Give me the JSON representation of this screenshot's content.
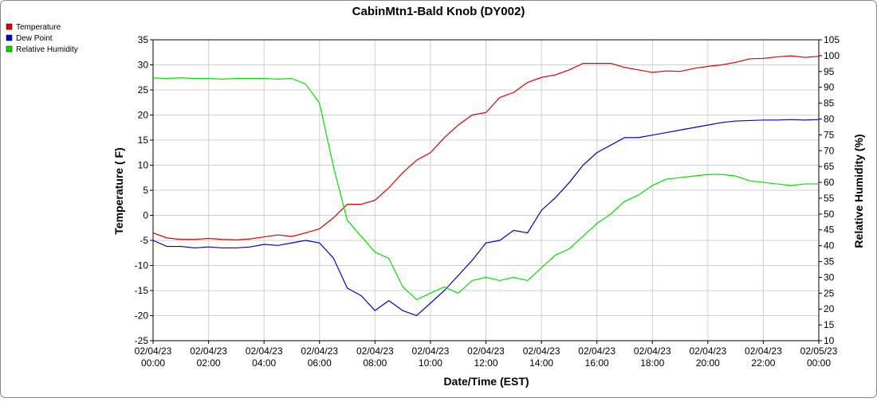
{
  "chart_data": {
    "type": "line",
    "title": "CabinMtn1-Bald Knob (DY002)",
    "x_label": "Date/Time (EST)",
    "y_label": "Temperature ( F)",
    "y2_label": "Relative Humidity (%)",
    "x": [
      "02/04/23 00:00",
      "02/04/23 00:30",
      "02/04/23 01:00",
      "02/04/23 01:30",
      "02/04/23 02:00",
      "02/04/23 02:30",
      "02/04/23 03:00",
      "02/04/23 03:30",
      "02/04/23 04:00",
      "02/04/23 04:30",
      "02/04/23 05:00",
      "02/04/23 05:30",
      "02/04/23 06:00",
      "02/04/23 06:30",
      "02/04/23 07:00",
      "02/04/23 07:30",
      "02/04/23 08:00",
      "02/04/23 08:30",
      "02/04/23 09:00",
      "02/04/23 09:30",
      "02/04/23 10:00",
      "02/04/23 10:30",
      "02/04/23 11:00",
      "02/04/23 11:30",
      "02/04/23 12:00",
      "02/04/23 12:30",
      "02/04/23 13:00",
      "02/04/23 13:30",
      "02/04/23 14:00",
      "02/04/23 14:30",
      "02/04/23 15:00",
      "02/04/23 15:30",
      "02/04/23 16:00",
      "02/04/23 16:30",
      "02/04/23 17:00",
      "02/04/23 17:30",
      "02/04/23 18:00",
      "02/04/23 18:30",
      "02/04/23 19:00",
      "02/04/23 19:30",
      "02/04/23 20:00",
      "02/04/23 20:30",
      "02/04/23 21:00",
      "02/04/23 21:30",
      "02/04/23 22:00",
      "02/04/23 22:30",
      "02/04/23 23:00",
      "02/04/23 23:30",
      "02/05/23 00:00"
    ],
    "series": [
      {
        "name": "Temperature",
        "color": "#e00000",
        "values": [
          -3.5,
          -4.5,
          -4.8,
          -4.8,
          -4.6,
          -4.8,
          -4.9,
          -4.7,
          -4.3,
          -3.9,
          -4.2,
          -3.5,
          -2.7,
          -0.5,
          2.2,
          2.2,
          3,
          5.5,
          8.5,
          11,
          12.5,
          15.5,
          18,
          20,
          20.5,
          23.5,
          24.5,
          26.5,
          27.5,
          28,
          29,
          30.3,
          30.3,
          30.3,
          29.5,
          29,
          28.5,
          28.8,
          28.7,
          29.3,
          29.7,
          30,
          30.5,
          31.2,
          31.3,
          31.6,
          31.8,
          31.5,
          31.7
        ]
      },
      {
        "name": "Dew Point",
        "color": "#0000cc",
        "values": [
          -5,
          -6.2,
          -6.2,
          -6.5,
          -6.3,
          -6.5,
          -6.5,
          -6.3,
          -5.8,
          -6,
          -5.5,
          -5,
          -5.5,
          -8.5,
          -14.5,
          -16,
          -19,
          -17,
          -19,
          -20,
          -17.5,
          -15,
          -12,
          -9,
          -5.5,
          -5,
          -3,
          -3.5,
          1,
          3.5,
          6.5,
          10,
          12.5,
          14,
          15.5,
          15.5,
          16,
          16.5,
          17,
          17.5,
          18,
          18.5,
          18.8,
          18.9,
          19,
          19,
          19.1,
          19,
          19.1
        ]
      },
      {
        "name": "Relative Humidity",
        "color": "#00e000",
        "axis": "y2",
        "values": [
          93,
          92.8,
          93,
          92.8,
          92.8,
          92.6,
          92.8,
          92.8,
          92.8,
          92.6,
          92.8,
          91,
          85,
          65,
          48,
          43,
          38,
          36,
          27,
          23,
          25,
          27,
          25,
          29,
          30,
          29,
          30,
          29,
          33,
          37,
          39,
          43,
          47,
          50,
          54,
          56,
          59,
          61,
          61.5,
          62,
          62.5,
          62.5,
          62,
          60.5,
          60,
          59.5,
          59,
          59.5,
          59.5
        ]
      }
    ],
    "xlim": [
      "02/04/23 00:00",
      "02/05/23 00:00"
    ],
    "xticks": [
      "02/04/23 00:00",
      "02/04/23 02:00",
      "02/04/23 04:00",
      "02/04/23 06:00",
      "02/04/23 08:00",
      "02/04/23 10:00",
      "02/04/23 12:00",
      "02/04/23 14:00",
      "02/04/23 16:00",
      "02/04/23 18:00",
      "02/04/23 20:00",
      "02/04/23 22:00",
      "02/05/23 00:00"
    ],
    "ylim": [
      -25,
      35
    ],
    "yticks": [
      -25,
      -20,
      -15,
      -10,
      -5,
      0,
      5,
      10,
      15,
      20,
      25,
      30,
      35
    ],
    "y2lim": [
      10,
      105
    ],
    "y2ticks": [
      10,
      15,
      20,
      25,
      30,
      35,
      40,
      45,
      50,
      55,
      60,
      65,
      70,
      75,
      80,
      85,
      90,
      95,
      100,
      105
    ],
    "grid": true,
    "legend": "top-left"
  }
}
